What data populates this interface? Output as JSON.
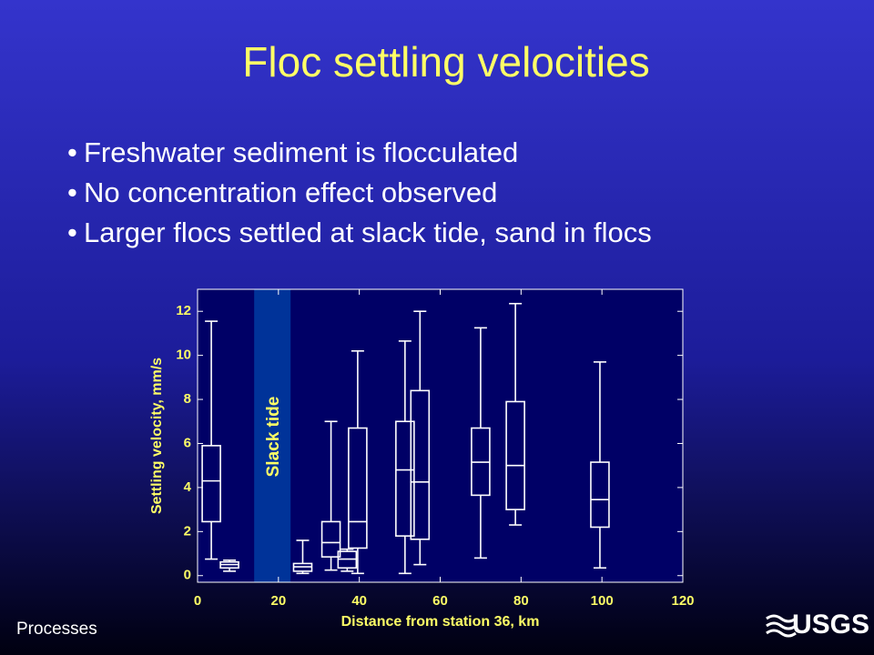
{
  "title": "Floc settling velocities",
  "bullets": [
    "Freshwater sediment is flocculated",
    "No concentration effect observed",
    "Larger flocs settled at slack tide, sand in flocs"
  ],
  "footer": "Processes",
  "logo": "USGS",
  "chart_data": {
    "type": "box",
    "xlabel": "Distance from station 36, km",
    "ylabel": "Settling velocity, mm/s",
    "xlim": [
      0,
      120
    ],
    "xticks": [
      0,
      20,
      40,
      60,
      80,
      100,
      120
    ],
    "ylim": [
      -0.3,
      13
    ],
    "yticks": [
      0,
      2,
      4,
      6,
      8,
      10,
      12
    ],
    "grid": false,
    "color": "#ffffff",
    "background": "#000066",
    "band": {
      "label": "Slack tide",
      "xlim": [
        14,
        23
      ],
      "color": "#003399"
    },
    "x": [
      3.4,
      7.9,
      26,
      33,
      37,
      39.6,
      51.3,
      55,
      70,
      78.6,
      99.5
    ],
    "whislo": [
      0.75,
      0.2,
      0.1,
      0.25,
      0.2,
      0.1,
      0.1,
      0.5,
      0.8,
      2.3,
      0.35
    ],
    "q1": [
      2.45,
      0.35,
      0.2,
      0.85,
      0.35,
      1.25,
      1.8,
      1.65,
      3.65,
      3.0,
      2.2
    ],
    "median": [
      4.3,
      0.5,
      0.4,
      1.5,
      0.75,
      2.45,
      4.8,
      4.25,
      5.15,
      5.0,
      3.45
    ],
    "q3": [
      5.9,
      0.62,
      0.55,
      2.45,
      1.1,
      6.7,
      7.0,
      8.4,
      6.7,
      7.9,
      5.15
    ],
    "whishi": [
      11.55,
      0.7,
      1.6,
      7.0,
      1.2,
      10.2,
      10.65,
      12.0,
      11.25,
      12.35,
      9.7
    ]
  }
}
